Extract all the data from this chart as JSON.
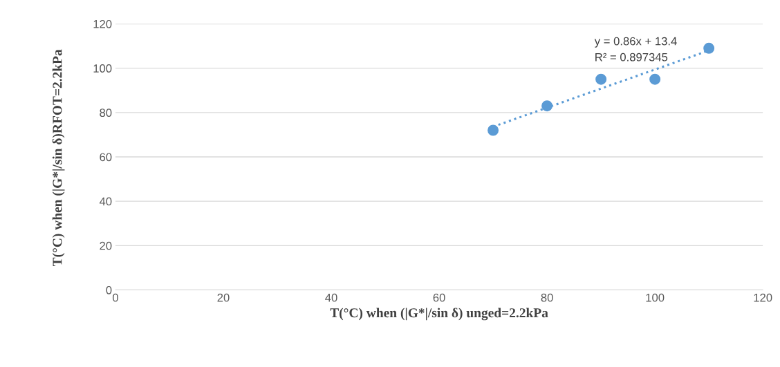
{
  "chart_data": {
    "type": "scatter",
    "xlabel": "T(°C) when (|G*|/sin δ) unged=2.2kPa",
    "ylabel": "T(°C) when (|G*|/sin δ)RFOT=2.2kPa",
    "x": [
      70,
      80,
      90,
      100,
      110
    ],
    "series": [
      {
        "color": "#5b9bd5",
        "values": [
          72,
          83,
          95,
          95,
          109
        ],
        "marker": "circle"
      },
      {
        "type": "line",
        "color": "#5b9bd5",
        "x": [
          70,
          110
        ],
        "values": [
          73.6,
          108.0
        ],
        "line_style": "dotted",
        "marker": "none"
      }
    ],
    "annotations": [
      "y = 0.86x + 13.4",
      "R² = 0.897345"
    ],
    "xlim": [
      0,
      120
    ],
    "xticks": [
      0,
      20,
      40,
      60,
      80,
      100,
      120
    ],
    "ylim": [
      0,
      120
    ],
    "yticks": [
      0,
      20,
      40,
      60,
      80,
      100,
      120
    ],
    "grid": "y",
    "legend": false
  }
}
